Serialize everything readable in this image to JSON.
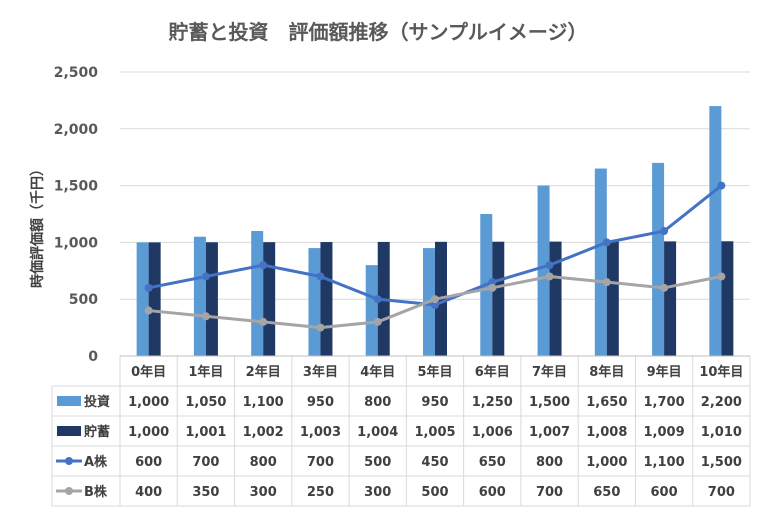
{
  "chart_data": {
    "type": "bar",
    "title": "貯蓄と投資　評価額推移（サンプルイメージ）",
    "ylabel": "時価評価額（千円）",
    "ylim": [
      0,
      2500
    ],
    "yticks": [
      "0",
      "500",
      "1,000",
      "1,500",
      "2,000",
      "2,500"
    ],
    "ytick_values": [
      0,
      500,
      1000,
      1500,
      2000,
      2500
    ],
    "grid": true,
    "legend": "data-table",
    "categories": [
      "0年目",
      "1年目",
      "2年目",
      "3年目",
      "4年目",
      "5年目",
      "6年目",
      "7年目",
      "8年目",
      "9年目",
      "10年目"
    ],
    "series": [
      {
        "name": "投資",
        "kind": "bar",
        "color": "#5B9BD5",
        "values": [
          1000,
          1050,
          1100,
          950,
          800,
          950,
          1250,
          1500,
          1650,
          1700,
          2200
        ],
        "labels": [
          "1,000",
          "1,050",
          "1,100",
          "950",
          "800",
          "950",
          "1,250",
          "1,500",
          "1,650",
          "1,700",
          "2,200"
        ]
      },
      {
        "name": "貯蓄",
        "kind": "bar",
        "color": "#203864",
        "values": [
          1000,
          1001,
          1002,
          1003,
          1004,
          1005,
          1006,
          1007,
          1008,
          1009,
          1010
        ],
        "labels": [
          "1,000",
          "1,001",
          "1,002",
          "1,003",
          "1,004",
          "1,005",
          "1,006",
          "1,007",
          "1,008",
          "1,009",
          "1,010"
        ]
      },
      {
        "name": "A株",
        "kind": "line",
        "color": "#4472C4",
        "values": [
          600,
          700,
          800,
          700,
          500,
          450,
          650,
          800,
          1000,
          1100,
          1500
        ],
        "labels": [
          "600",
          "700",
          "800",
          "700",
          "500",
          "450",
          "650",
          "800",
          "1,000",
          "1,100",
          "1,500"
        ]
      },
      {
        "name": "B株",
        "kind": "line",
        "color": "#A5A5A5",
        "values": [
          400,
          350,
          300,
          250,
          300,
          500,
          600,
          700,
          650,
          600,
          700
        ],
        "labels": [
          "400",
          "350",
          "300",
          "250",
          "300",
          "500",
          "600",
          "700",
          "650",
          "600",
          "700"
        ]
      }
    ]
  }
}
